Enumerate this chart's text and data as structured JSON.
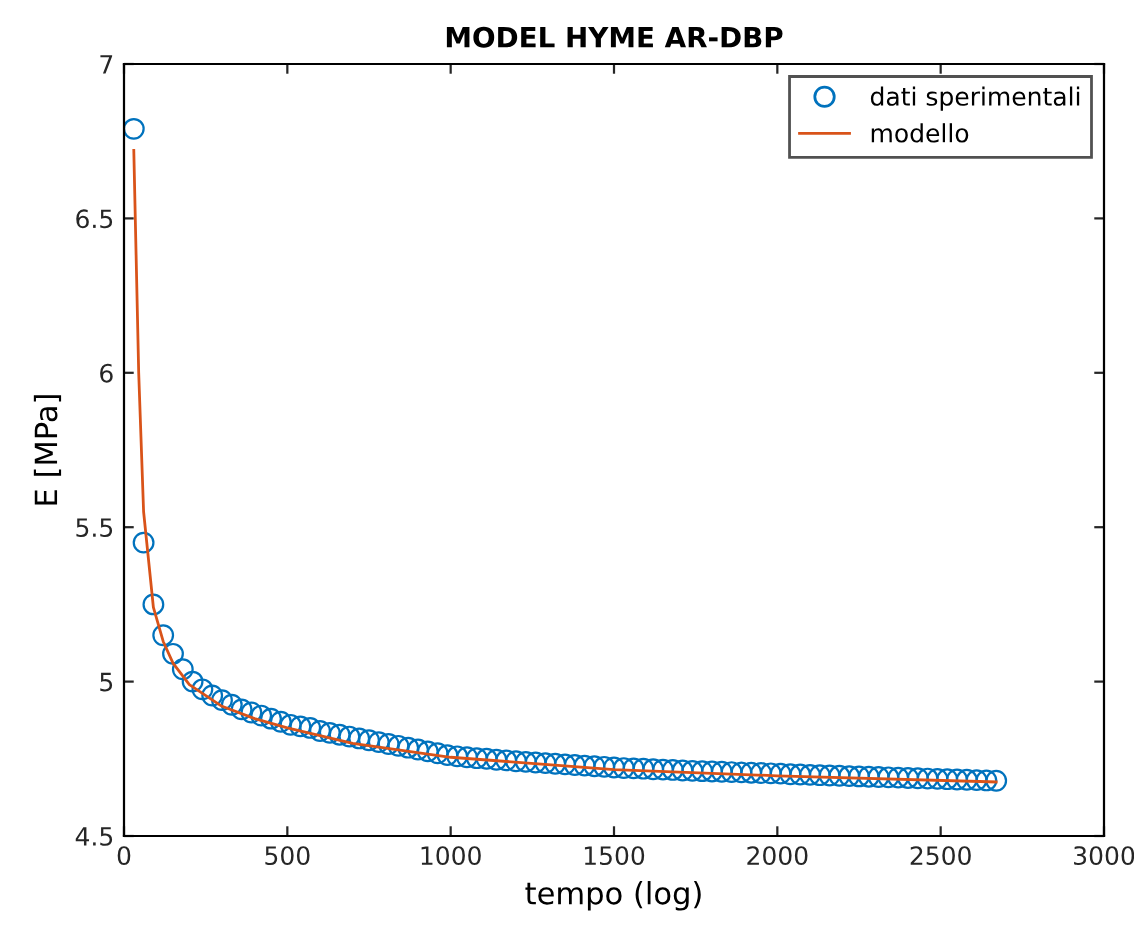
{
  "chart_data": {
    "type": "scatter",
    "title": "MODEL HYME AR-DBP",
    "xlabel": "tempo (log)",
    "ylabel": "E [MPa]",
    "xlim": [
      0,
      3000
    ],
    "ylim": [
      4.5,
      7
    ],
    "xticks": [
      0,
      500,
      1000,
      1500,
      2000,
      2500,
      3000
    ],
    "yticks": [
      4.5,
      5,
      5.5,
      6,
      6.5,
      7
    ],
    "grid": false,
    "legend": "top right",
    "series": [
      {
        "name": "dati sperimentali",
        "marker": "circle",
        "color": "#0072bd",
        "x": [
          30,
          60,
          90,
          120,
          150,
          180,
          210,
          240,
          270,
          300,
          330,
          360,
          390,
          420,
          450,
          480,
          510,
          540,
          570,
          600,
          630,
          660,
          690,
          720,
          750,
          780,
          810,
          840,
          870,
          900,
          930,
          960,
          990,
          1020,
          1050,
          1080,
          1110,
          1140,
          1170,
          1200,
          1230,
          1260,
          1290,
          1320,
          1350,
          1380,
          1410,
          1440,
          1470,
          1500,
          1530,
          1560,
          1590,
          1620,
          1650,
          1680,
          1710,
          1740,
          1770,
          1800,
          1830,
          1860,
          1890,
          1920,
          1950,
          1980,
          2010,
          2040,
          2070,
          2100,
          2130,
          2160,
          2190,
          2220,
          2250,
          2280,
          2310,
          2340,
          2370,
          2400,
          2430,
          2460,
          2490,
          2520,
          2550,
          2580,
          2610,
          2640,
          2670
        ],
        "values": [
          6.79,
          5.45,
          5.25,
          5.15,
          5.09,
          5.04,
          5.0,
          4.975,
          4.955,
          4.94,
          4.925,
          4.91,
          4.9,
          4.89,
          4.88,
          4.87,
          4.86,
          4.855,
          4.85,
          4.84,
          4.834,
          4.828,
          4.822,
          4.816,
          4.81,
          4.804,
          4.798,
          4.792,
          4.786,
          4.78,
          4.774,
          4.768,
          4.762,
          4.758,
          4.755,
          4.752,
          4.75,
          4.747,
          4.745,
          4.742,
          4.74,
          4.738,
          4.736,
          4.734,
          4.732,
          4.73,
          4.728,
          4.726,
          4.724,
          4.722,
          4.72,
          4.719,
          4.718,
          4.716,
          4.715,
          4.714,
          4.712,
          4.711,
          4.71,
          4.709,
          4.708,
          4.707,
          4.706,
          4.705,
          4.704,
          4.703,
          4.702,
          4.7,
          4.699,
          4.698,
          4.697,
          4.696,
          4.695,
          4.694,
          4.693,
          4.692,
          4.691,
          4.69,
          4.689,
          4.688,
          4.687,
          4.686,
          4.685,
          4.684,
          4.683,
          4.682,
          4.681,
          4.68,
          4.679
        ]
      },
      {
        "name": "modello",
        "type": "line",
        "marker": "none",
        "line_style": "solid",
        "color": "#d95319",
        "x": [
          30,
          45,
          60,
          90,
          120,
          150,
          200,
          300,
          400,
          500,
          700,
          1000,
          1500,
          2000,
          2670
        ],
        "values": [
          6.72,
          6.0,
          5.55,
          5.24,
          5.13,
          5.06,
          4.99,
          4.92,
          4.88,
          4.85,
          4.8,
          4.755,
          4.715,
          4.695,
          4.675
        ]
      }
    ]
  }
}
